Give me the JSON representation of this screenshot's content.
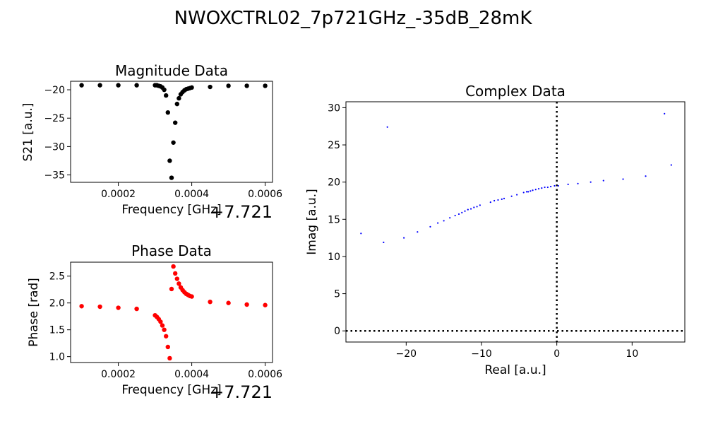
{
  "figure": {
    "title": "NWOXCTRL02_7p721GHz_-35dB_28mK"
  },
  "chart_data": [
    {
      "id": "magnitude",
      "type": "scatter",
      "title": "Magnitude Data",
      "xlabel": "Frequency [GHz]",
      "ylabel": "S21 [a.u.]",
      "x_offset_label": "+7.721",
      "xlim": [
        7e-05,
        0.00062
      ],
      "ylim": [
        -36.3,
        -18.5
      ],
      "xticks": [
        0.0002,
        0.0004,
        0.0006
      ],
      "xtick_labels": [
        "0.0002",
        "0.0004",
        "0.0006"
      ],
      "yticks": [
        -35,
        -30,
        -25,
        -20
      ],
      "ytick_labels": [
        "−35",
        "−30",
        "−25",
        "−20"
      ],
      "color": "#000000",
      "series": [
        {
          "x": [
            0.0001,
            0.00015,
            0.0002,
            0.00025,
            0.0003,
            0.000305,
            0.00031,
            0.000315,
            0.00032,
            0.000325,
            0.00033,
            0.000335,
            0.00034,
            0.000345,
            0.00035,
            0.000355,
            0.00036,
            0.000365,
            0.00037,
            0.000375,
            0.00038,
            0.000385,
            0.00039,
            0.000395,
            0.0004,
            0.00045,
            0.0005,
            0.00055,
            0.0006
          ],
          "y": [
            -19.2,
            -19.2,
            -19.2,
            -19.2,
            -19.2,
            -19.2,
            -19.3,
            -19.4,
            -19.6,
            -20.0,
            -21.0,
            -24.0,
            -32.5,
            -35.5,
            -29.3,
            -25.8,
            -22.5,
            -21.5,
            -20.8,
            -20.4,
            -20.1,
            -19.9,
            -19.8,
            -19.7,
            -19.6,
            -19.5,
            -19.3,
            -19.3,
            -19.3
          ]
        }
      ]
    },
    {
      "id": "phase",
      "type": "scatter",
      "title": "Phase Data",
      "xlabel": "Frequency [GHz]",
      "ylabel": "Phase [rad]",
      "x_offset_label": "+7.721",
      "xlim": [
        7e-05,
        0.00062
      ],
      "ylim": [
        0.89,
        2.76
      ],
      "xticks": [
        0.0002,
        0.0004,
        0.0006
      ],
      "xtick_labels": [
        "0.0002",
        "0.0004",
        "0.0006"
      ],
      "yticks": [
        1.0,
        1.5,
        2.0,
        2.5
      ],
      "ytick_labels": [
        "1.0",
        "1.5",
        "2.0",
        "2.5"
      ],
      "color": "#ff0000",
      "series": [
        {
          "x": [
            0.0001,
            0.00015,
            0.0002,
            0.00025,
            0.0003,
            0.000305,
            0.00031,
            0.000315,
            0.00032,
            0.000325,
            0.00033,
            0.000335,
            0.00034,
            0.000345,
            0.00035,
            0.000355,
            0.00036,
            0.000365,
            0.00037,
            0.000375,
            0.00038,
            0.000385,
            0.00039,
            0.000395,
            0.0004,
            0.00045,
            0.0005,
            0.00055,
            0.0006
          ],
          "y": [
            1.94,
            1.93,
            1.91,
            1.89,
            1.77,
            1.74,
            1.7,
            1.65,
            1.58,
            1.5,
            1.38,
            1.18,
            0.97,
            2.26,
            2.68,
            2.55,
            2.45,
            2.36,
            2.29,
            2.24,
            2.2,
            2.17,
            2.15,
            2.13,
            2.12,
            2.02,
            2.0,
            1.97,
            1.96
          ]
        }
      ]
    },
    {
      "id": "complex",
      "type": "scatter",
      "title": "Complex Data",
      "xlabel": "Real [a.u.]",
      "ylabel": "Imag [a.u.]",
      "xlim": [
        -28,
        17
      ],
      "ylim": [
        -1.5,
        30.8
      ],
      "xticks": [
        -20,
        -10,
        0,
        10
      ],
      "xtick_labels": [
        "−20",
        "−10",
        "0",
        "10"
      ],
      "yticks": [
        0,
        5,
        10,
        15,
        20,
        25,
        30
      ],
      "ytick_labels": [
        "0",
        "5",
        "10",
        "15",
        "20",
        "25",
        "30"
      ],
      "color": "#0000ff",
      "reference_lines": {
        "x": 0,
        "y": 0,
        "style": "dotted"
      },
      "series": [
        {
          "x": [
            -26.0,
            -23.0,
            -22.5,
            -20.3,
            -18.5,
            -16.8,
            -15.8,
            -15.0,
            -14.2,
            -13.5,
            -13.0,
            -12.6,
            -12.2,
            -11.8,
            -11.4,
            -11.0,
            -10.6,
            -10.2,
            -8.8,
            -8.3,
            -7.8,
            -7.3,
            -7.0,
            -6.0,
            -5.3,
            -4.4,
            -4.0,
            -3.8,
            -3.5,
            -3.2,
            -2.8,
            -2.4,
            -2.0,
            -1.6,
            -1.2,
            -0.8,
            -0.3,
            0.2,
            1.5,
            2.8,
            4.5,
            6.2,
            8.8,
            11.8,
            14.3,
            15.2
          ],
          "y": [
            13.1,
            11.9,
            27.4,
            12.5,
            13.3,
            14.0,
            14.5,
            14.8,
            15.2,
            15.5,
            15.7,
            15.9,
            16.1,
            16.3,
            16.4,
            16.6,
            16.7,
            16.9,
            17.3,
            17.5,
            17.6,
            17.7,
            17.8,
            18.1,
            18.3,
            18.6,
            18.7,
            18.7,
            18.8,
            18.9,
            19.0,
            19.1,
            19.2,
            19.3,
            19.3,
            19.4,
            19.5,
            19.5,
            19.7,
            19.8,
            20.0,
            20.2,
            20.4,
            20.8,
            29.2,
            22.3
          ]
        }
      ]
    }
  ]
}
